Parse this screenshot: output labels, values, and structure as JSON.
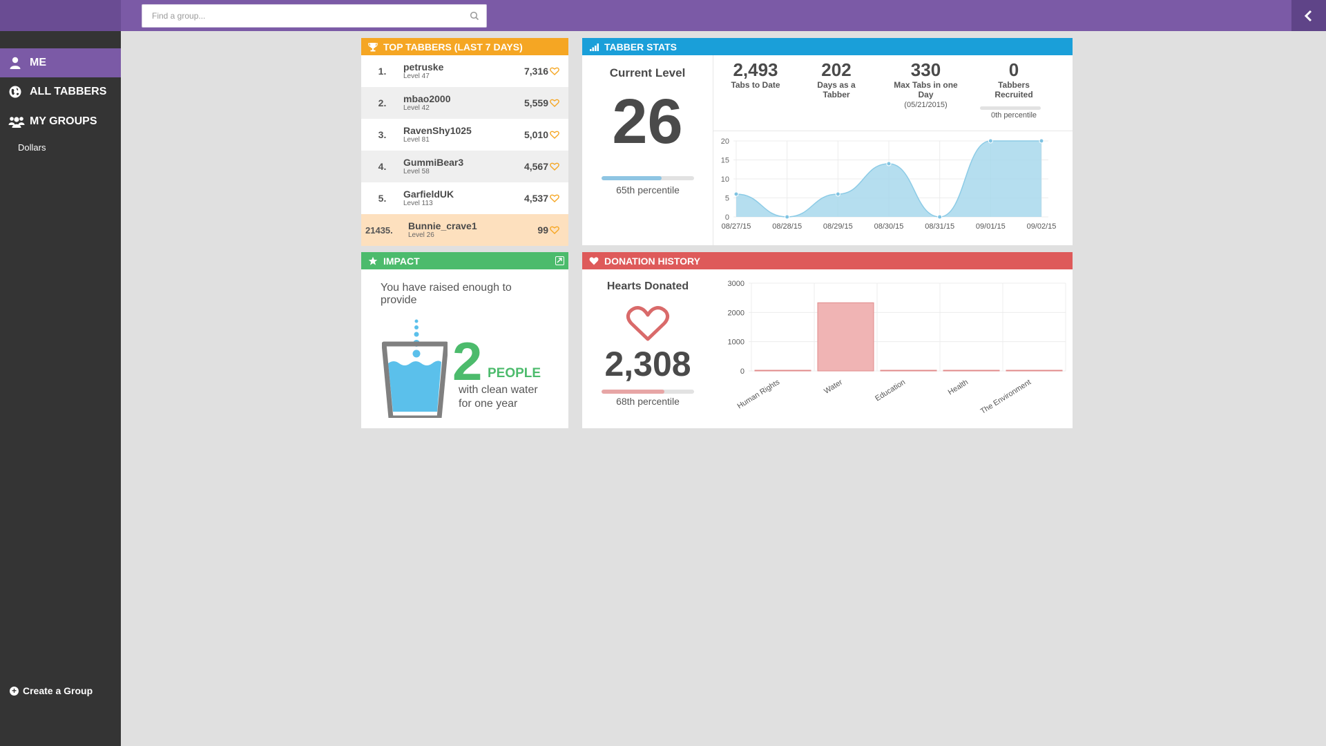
{
  "search": {
    "placeholder": "Find a group..."
  },
  "sidebar": {
    "items": [
      {
        "label": "ME",
        "icon": "user-icon",
        "active": true
      },
      {
        "label": "ALL TABBERS",
        "icon": "globe-icon",
        "active": false
      },
      {
        "label": "MY GROUPS",
        "icon": "group-icon",
        "active": false
      }
    ],
    "groups": [
      "Dollars"
    ],
    "create_group_label": "Create a Group"
  },
  "top_tabbers": {
    "title": "TOP TABBERS (LAST 7 DAYS)",
    "rows": [
      {
        "rank": "1.",
        "name": "petruske",
        "level": "Level 47",
        "hearts": "7,316"
      },
      {
        "rank": "2.",
        "name": "mbao2000",
        "level": "Level 42",
        "hearts": "5,559"
      },
      {
        "rank": "3.",
        "name": "RavenShy1025",
        "level": "Level 81",
        "hearts": "5,010"
      },
      {
        "rank": "4.",
        "name": "GummiBear3",
        "level": "Level 58",
        "hearts": "4,567"
      },
      {
        "rank": "5.",
        "name": "GarfieldUK",
        "level": "Level 113",
        "hearts": "4,537"
      },
      {
        "rank": "21435.",
        "name": "Bunnie_crave1",
        "level": "Level 26",
        "hearts": "99"
      }
    ]
  },
  "tabber_stats": {
    "title": "TABBER STATS",
    "current_level_label": "Current Level",
    "current_level": "26",
    "level_percentile_label": "65th percentile",
    "level_percentile": 0.65,
    "stats": [
      {
        "value": "2,493",
        "label": "Tabs to Date",
        "sub": ""
      },
      {
        "value": "202",
        "label": "Days as a Tabber",
        "sub": ""
      },
      {
        "value": "330",
        "label": "Max Tabs in one Day",
        "sub": "(05/21/2015)"
      },
      {
        "value": "0",
        "label": "Tabbers Recruited",
        "sub": ""
      }
    ],
    "recruited_percentile_label": "0th percentile",
    "recruited_percentile": 0
  },
  "impact": {
    "title": "IMPACT",
    "intro": "You have raised enough to provide",
    "number": "2",
    "unit": "PEOPLE",
    "description": "with clean water for one year"
  },
  "donation_history": {
    "title": "DONATION HISTORY",
    "hearts_label": "Hearts Donated",
    "hearts_value": "2,308",
    "percentile_label": "68th percentile",
    "percentile": 0.68
  },
  "colors": {
    "purple": "#7b5aa6",
    "orange": "#f5a623",
    "blue": "#1a9fd9",
    "green": "#4cbb6c",
    "red": "#de5a5a"
  },
  "chart_data": [
    {
      "type": "area",
      "title": "",
      "categories": [
        "08/27/15",
        "08/28/15",
        "08/29/15",
        "08/30/15",
        "08/31/15",
        "09/01/15",
        "09/02/15"
      ],
      "values": [
        6,
        0,
        6,
        14,
        0,
        20,
        20
      ],
      "ylim": [
        0,
        20
      ],
      "yticks": [
        0,
        5,
        10,
        15,
        20
      ],
      "grid": true,
      "color": "#a8d8ec"
    },
    {
      "type": "bar",
      "title": "",
      "categories": [
        "Human Rights",
        "Water",
        "Education",
        "Health",
        "The Environment"
      ],
      "values": [
        0,
        2308,
        0,
        0,
        0
      ],
      "ylim": [
        0,
        3000
      ],
      "yticks": [
        0,
        1000,
        2000,
        3000
      ],
      "grid": true,
      "color": "#f0b4b4"
    }
  ]
}
